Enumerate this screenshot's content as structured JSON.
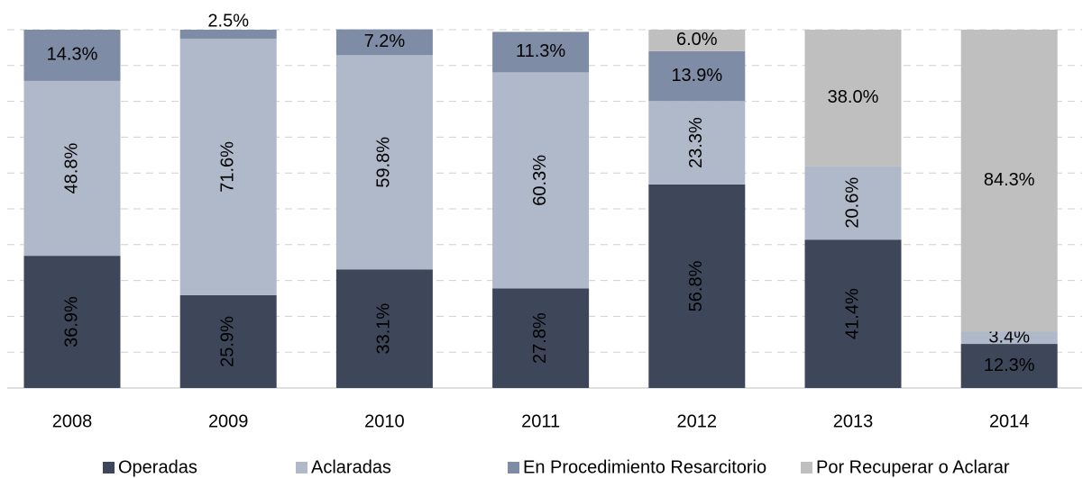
{
  "chart_data": {
    "type": "stacked_bar",
    "categories": [
      "2008",
      "2009",
      "2010",
      "2011",
      "2012",
      "2013",
      "2014"
    ],
    "series": [
      {
        "name": "Operadas",
        "color": "#3d4759",
        "values": [
          36.9,
          25.9,
          33.1,
          27.8,
          56.8,
          41.4,
          12.3
        ],
        "value_labels": [
          "36.9%",
          "25.9%",
          "33.1%",
          "27.8%",
          "56.8%",
          "41.4%",
          "12.3%"
        ]
      },
      {
        "name": "Aclaradas",
        "color": "#b0b9c9",
        "values": [
          48.8,
          71.6,
          59.8,
          60.3,
          23.3,
          20.6,
          3.4
        ],
        "value_labels": [
          "48.8%",
          "71.6%",
          "59.8%",
          "60.3%",
          "23.3%",
          "20.6%",
          "3.4%"
        ]
      },
      {
        "name": "En Procedimiento Resarcitorio",
        "color": "#7f8ca6",
        "values": [
          14.3,
          2.5,
          7.2,
          11.3,
          13.9,
          null,
          null
        ],
        "value_labels": [
          "14.3%",
          "2.5%",
          "7.2%",
          "11.3%",
          "13.9%",
          null,
          null
        ]
      },
      {
        "name": "Por Recuperar o Aclarar",
        "color": "#bfbfbf",
        "values": [
          null,
          null,
          null,
          null,
          6.0,
          38.0,
          84.3
        ],
        "value_labels": [
          null,
          null,
          null,
          null,
          "6.0%",
          "38.0%",
          "84.3%"
        ]
      }
    ],
    "ylim": [
      0,
      100
    ],
    "yticks": [
      0,
      10,
      20,
      30,
      40,
      50,
      60,
      70,
      80,
      90,
      100
    ],
    "grid": true
  }
}
